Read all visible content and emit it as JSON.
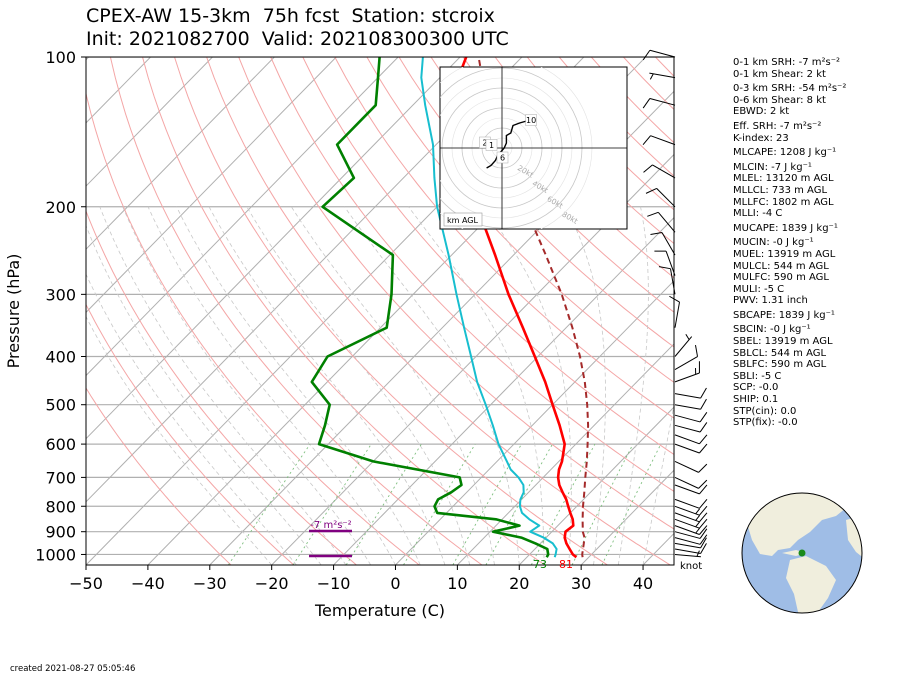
{
  "title_line1": "CPEX-AW 15-3km  75h fcst  Station: stcroix",
  "title_line2": "Init: 2021082700  Valid: 202108300300 UTC",
  "created": "created 2021-08-27 05:05:46",
  "parameters": [
    "0-1 km SRH: -7 m²s⁻²",
    "0-1 km Shear: 2 kt",
    "0-3 km SRH: -54 m²s⁻²",
    "0-6 km Shear: 8 kt",
    "EBWD: 2 kt",
    "Eff. SRH: -7 m²s⁻²",
    "K-index: 23",
    "MLCAPE: 1208 J kg⁻¹",
    "MLCIN: -7 J kg⁻¹",
    "MLEL: 13120 m AGL",
    "MLLCL: 733 m AGL",
    "MLLFC: 1802 m AGL",
    "MLLI: -4 C",
    "MUCAPE: 1839 J kg⁻¹",
    "MUCIN: -0 J kg⁻¹",
    "MUEL: 13919 m AGL",
    "MULCL: 544 m AGL",
    "MULFC: 590 m AGL",
    "MULI: -5 C",
    "PWV: 1.31 inch",
    "SBCAPE: 1839 J kg⁻¹",
    "SBCIN: -0 J kg⁻¹",
    "SBEL: 13919 m AGL",
    "SBLCL: 544 m AGL",
    "SBLFC: 590 m AGL",
    "SBLI: -5 C",
    "SCP: -0.0",
    "SHIP: 0.1",
    "STP(cin): 0.0",
    "STP(fix): -0.0"
  ],
  "chart_data": {
    "type": "line",
    "subtype": "skew-t log-p",
    "xlabel": "Temperature (C)",
    "ylabel": "Pressure (hPa)",
    "xlim": [
      -50,
      45
    ],
    "ylim": [
      1050,
      100
    ],
    "x_ticks": [
      -50,
      -40,
      -30,
      -20,
      -10,
      0,
      10,
      20,
      30,
      40
    ],
    "y_ticks": [
      100,
      200,
      300,
      400,
      500,
      600,
      700,
      800,
      900,
      1000
    ],
    "y_scale": "log",
    "surface_temperature_label": "81",
    "surface_dewpoint_label": "73",
    "srh_label": "-7 m²s⁻²",
    "wind_units_label": "knot",
    "colors": {
      "temperature": "#ff0000",
      "dewpoint": "#008000",
      "wetbulb": "#17becf",
      "parcel": "#a52a2a",
      "srh_bars": "#800080",
      "isotherm": "#b0b0b0",
      "dry_adiabat": "#f4a6a6",
      "moist_adiabat": "#c8c8c8",
      "mixing_ratio": "#7fbf7f"
    },
    "series": [
      {
        "name": "",
        "key": "temperature",
        "points": [
          [
            1013,
            28.0
          ],
          [
            1000,
            27.0
          ],
          [
            975,
            25.6
          ],
          [
            950,
            24.2
          ],
          [
            925,
            23.0
          ],
          [
            900,
            22.2
          ],
          [
            875,
            22.5
          ],
          [
            850,
            21.4
          ],
          [
            825,
            20.0
          ],
          [
            800,
            18.6
          ],
          [
            775,
            17.2
          ],
          [
            750,
            15.5
          ],
          [
            725,
            13.8
          ],
          [
            700,
            12.4
          ],
          [
            675,
            11.3
          ],
          [
            650,
            10.5
          ],
          [
            600,
            8.2
          ],
          [
            550,
            4.4
          ],
          [
            500,
            0.0
          ],
          [
            450,
            -4.8
          ],
          [
            400,
            -10.5
          ],
          [
            350,
            -17.0
          ],
          [
            300,
            -24.6
          ],
          [
            250,
            -33.0
          ],
          [
            200,
            -43.5
          ],
          [
            175,
            -49.0
          ],
          [
            150,
            -55.5
          ],
          [
            125,
            -62.5
          ],
          [
            110,
            -67.0
          ],
          [
            100,
            -69.0
          ]
        ]
      },
      {
        "name": "",
        "key": "dewpoint",
        "points": [
          [
            1013,
            23.2
          ],
          [
            1000,
            23.0
          ],
          [
            975,
            22.0
          ],
          [
            950,
            19.2
          ],
          [
            925,
            16.0
          ],
          [
            900,
            10.5
          ],
          [
            875,
            13.8
          ],
          [
            850,
            9.0
          ],
          [
            825,
            -1.5
          ],
          [
            800,
            -3.0
          ],
          [
            775,
            -3.5
          ],
          [
            750,
            -2.5
          ],
          [
            725,
            -2.0
          ],
          [
            700,
            -3.5
          ],
          [
            650,
            -20.0
          ],
          [
            600,
            -31.5
          ],
          [
            550,
            -33.5
          ],
          [
            500,
            -36.0
          ],
          [
            450,
            -42.5
          ],
          [
            400,
            -44.0
          ],
          [
            350,
            -39.0
          ],
          [
            300,
            -43.5
          ],
          [
            250,
            -49.5
          ],
          [
            200,
            -68.5
          ],
          [
            175,
            -68.0
          ],
          [
            150,
            -76.0
          ],
          [
            125,
            -76.0
          ],
          [
            110,
            -80.0
          ],
          [
            100,
            -83.0
          ]
        ]
      },
      {
        "name": "",
        "key": "wetbulb",
        "points": [
          [
            1013,
            24.5
          ],
          [
            1000,
            24.2
          ],
          [
            975,
            23.5
          ],
          [
            950,
            22.0
          ],
          [
            925,
            19.6
          ],
          [
            900,
            16.5
          ],
          [
            875,
            17.0
          ],
          [
            850,
            14.4
          ],
          [
            825,
            12.2
          ],
          [
            800,
            10.8
          ],
          [
            775,
            9.8
          ],
          [
            750,
            9.2
          ],
          [
            725,
            8.0
          ],
          [
            700,
            6.0
          ],
          [
            675,
            3.5
          ],
          [
            650,
            1.6
          ],
          [
            600,
            -2.5
          ],
          [
            550,
            -6.4
          ],
          [
            500,
            -10.8
          ],
          [
            450,
            -15.8
          ],
          [
            400,
            -20.8
          ],
          [
            350,
            -26.5
          ],
          [
            300,
            -33.0
          ],
          [
            250,
            -40.5
          ],
          [
            200,
            -50.0
          ],
          [
            175,
            -55.0
          ],
          [
            150,
            -60.5
          ],
          [
            125,
            -68.0
          ],
          [
            110,
            -73.0
          ],
          [
            100,
            -76.0
          ]
        ]
      },
      {
        "name": "",
        "key": "parcel",
        "points": [
          [
            1013,
            29.0
          ],
          [
            1000,
            28.5
          ],
          [
            950,
            27.0
          ],
          [
            925,
            26.2
          ],
          [
            900,
            25.0
          ],
          [
            850,
            23.0
          ],
          [
            800,
            21.0
          ],
          [
            750,
            19.0
          ],
          [
            700,
            16.8
          ],
          [
            650,
            14.5
          ],
          [
            600,
            11.9
          ],
          [
            550,
            9.0
          ],
          [
            500,
            5.6
          ],
          [
            450,
            1.6
          ],
          [
            400,
            -3.2
          ],
          [
            350,
            -9.0
          ],
          [
            300,
            -16.0
          ],
          [
            250,
            -24.8
          ],
          [
            200,
            -35.8
          ],
          [
            150,
            -49.5
          ],
          [
            125,
            -58.0
          ],
          [
            100,
            -67.0
          ]
        ]
      }
    ],
    "wind_barbs": [
      {
        "p": 1000,
        "speed_kt": 5,
        "dir_deg": 95
      },
      {
        "p": 975,
        "speed_kt": 10,
        "dir_deg": 100
      },
      {
        "p": 950,
        "speed_kt": 10,
        "dir_deg": 100
      },
      {
        "p": 925,
        "speed_kt": 10,
        "dir_deg": 105
      },
      {
        "p": 900,
        "speed_kt": 10,
        "dir_deg": 105
      },
      {
        "p": 875,
        "speed_kt": 15,
        "dir_deg": 110
      },
      {
        "p": 850,
        "speed_kt": 15,
        "dir_deg": 110
      },
      {
        "p": 825,
        "speed_kt": 15,
        "dir_deg": 110
      },
      {
        "p": 800,
        "speed_kt": 15,
        "dir_deg": 110
      },
      {
        "p": 775,
        "speed_kt": 10,
        "dir_deg": 110
      },
      {
        "p": 725,
        "speed_kt": 10,
        "dir_deg": 110
      },
      {
        "p": 700,
        "speed_kt": 10,
        "dir_deg": 115
      },
      {
        "p": 650,
        "speed_kt": 10,
        "dir_deg": 115
      },
      {
        "p": 600,
        "speed_kt": 10,
        "dir_deg": 110
      },
      {
        "p": 575,
        "speed_kt": 10,
        "dir_deg": 110
      },
      {
        "p": 550,
        "speed_kt": 10,
        "dir_deg": 105
      },
      {
        "p": 525,
        "speed_kt": 10,
        "dir_deg": 105
      },
      {
        "p": 500,
        "speed_kt": 10,
        "dir_deg": 100
      },
      {
        "p": 475,
        "speed_kt": 10,
        "dir_deg": 100
      },
      {
        "p": 450,
        "speed_kt": 15,
        "dir_deg": 70
      },
      {
        "p": 425,
        "speed_kt": 10,
        "dir_deg": 60
      },
      {
        "p": 400,
        "speed_kt": 5,
        "dir_deg": 40
      },
      {
        "p": 350,
        "speed_kt": 10,
        "dir_deg": 10
      },
      {
        "p": 300,
        "speed_kt": 10,
        "dir_deg": 350
      },
      {
        "p": 275,
        "speed_kt": 10,
        "dir_deg": 340
      },
      {
        "p": 250,
        "speed_kt": 10,
        "dir_deg": 330
      },
      {
        "p": 225,
        "speed_kt": 10,
        "dir_deg": 320
      },
      {
        "p": 200,
        "speed_kt": 10,
        "dir_deg": 315
      },
      {
        "p": 175,
        "speed_kt": 10,
        "dir_deg": 300
      },
      {
        "p": 150,
        "speed_kt": 10,
        "dir_deg": 290
      },
      {
        "p": 125,
        "speed_kt": 10,
        "dir_deg": 285
      },
      {
        "p": 110,
        "speed_kt": 5,
        "dir_deg": 280
      },
      {
        "p": 100,
        "speed_kt": 10,
        "dir_deg": 285
      }
    ],
    "hodograph": {
      "label": "km AGL",
      "ring_labels": [
        "20kt",
        "40kt",
        "60kt",
        "80kt"
      ],
      "ring_speeds_kt": [
        20,
        40,
        60,
        80
      ],
      "height_labels": [
        "2",
        "1",
        "6",
        "10"
      ],
      "points": [
        [
          -7,
          -8
        ],
        [
          -5,
          -7
        ],
        [
          -3,
          -5
        ],
        [
          -2,
          -3
        ],
        [
          0,
          -1
        ],
        [
          1,
          0
        ],
        [
          2,
          2
        ],
        [
          2,
          5
        ],
        [
          4,
          6
        ],
        [
          5,
          9
        ],
        [
          8,
          10
        ],
        [
          12,
          11
        ]
      ],
      "labelled_points": [
        [
          -8,
          2
        ],
        [
          -5,
          1
        ],
        [
          0,
          -4
        ],
        [
          13,
          11
        ]
      ]
    }
  }
}
